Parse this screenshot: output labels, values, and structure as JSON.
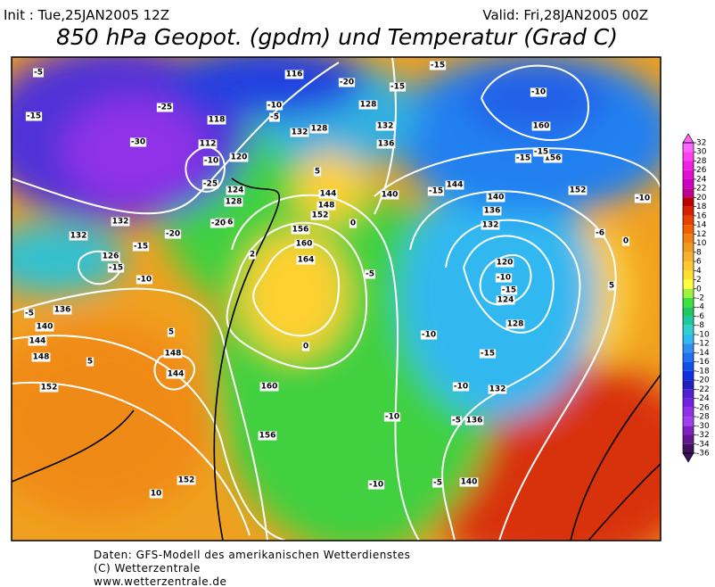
{
  "header": {
    "init": "Init : Tue,25JAN2005 12Z",
    "valid": "Valid: Fri,28JAN2005 00Z",
    "title": "850 hPa Geopot. (gpdm) und Temperatur (Grad C)"
  },
  "colorbar": {
    "ticks": [
      32,
      30,
      28,
      26,
      24,
      22,
      20,
      18,
      16,
      14,
      12,
      10,
      8,
      6,
      4,
      2,
      0,
      -2,
      -4,
      -6,
      -8,
      -10,
      -12,
      -14,
      -16,
      -18,
      -20,
      -22,
      -24,
      -26,
      -28,
      -30,
      -32,
      -34,
      -36
    ],
    "colors": [
      "#ff66ff",
      "#ff40f0",
      "#f020e0",
      "#e010d0",
      "#d000c0",
      "#c00090",
      "#c00000",
      "#d82000",
      "#e84000",
      "#f06000",
      "#f08010",
      "#f09a20",
      "#f8b030",
      "#ffc830",
      "#ffe030",
      "#ffff40",
      "#a0f040",
      "#40e040",
      "#20c860",
      "#20c8a0",
      "#30d0d0",
      "#30b8f0",
      "#3090f0",
      "#2070f0",
      "#1050e8",
      "#1030e0",
      "#2020c0",
      "#5020d0",
      "#7020e0",
      "#9030e8",
      "#a040f0",
      "#8020c0",
      "#601890",
      "#401060"
    ]
  },
  "map": {
    "labels": [
      116,
      118,
      112,
      120,
      124,
      128,
      136,
      132,
      126,
      132,
      136,
      140,
      144,
      148,
      152,
      148,
      144,
      152,
      156,
      160,
      164,
      160,
      156,
      152,
      148,
      144,
      140,
      132,
      128,
      128,
      132,
      136,
      144,
      140,
      136,
      132,
      120,
      124,
      128,
      132,
      136,
      140,
      152,
      156,
      160,
      -5,
      -15,
      -25,
      -30,
      -10,
      -25,
      -20,
      -15,
      -20,
      -15,
      -10,
      -20,
      -15,
      -10,
      -5,
      -15,
      -10,
      -15,
      -15,
      -15,
      -6,
      -10,
      -10,
      -15,
      -5,
      -10,
      -15,
      -10,
      -10,
      -5,
      -10,
      -5,
      0,
      0,
      0,
      5,
      5,
      5,
      5,
      10,
      -5,
      2
    ]
  },
  "footer": {
    "lines": [
      "Daten: GFS-Modell des amerikanischen Wetterdienstes",
      "(C) Wetterzentrale",
      "www.wetterzentrale.de"
    ]
  }
}
